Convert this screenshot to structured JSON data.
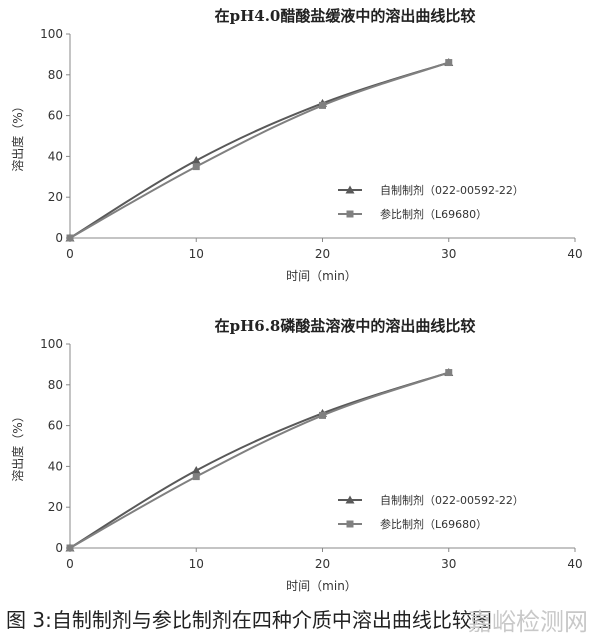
{
  "chart_data": [
    {
      "type": "line",
      "title": "在pH4.0醋酸盐缓液中的溶出曲线比较",
      "xlabel": "时间（min）",
      "ylabel": "溶出度（%）",
      "xlim": [
        0,
        40
      ],
      "ylim": [
        0,
        100
      ],
      "x_ticks": [
        "0",
        "10",
        "20",
        "30",
        "40"
      ],
      "y_ticks": [
        "0",
        "20",
        "40",
        "60",
        "80",
        "100"
      ],
      "legend_position": "lower-right",
      "series": [
        {
          "name": "自制制剂（022-00592-22）",
          "marker": "triangle",
          "color": "#595959",
          "x": [
            0,
            10,
            20,
            30
          ],
          "y": [
            0,
            38,
            66,
            86
          ]
        },
        {
          "name": "参比制剂（L69680）",
          "marker": "square",
          "color": "#808080",
          "x": [
            0,
            10,
            20,
            30
          ],
          "y": [
            0,
            35,
            65,
            86
          ]
        }
      ]
    },
    {
      "type": "line",
      "title": "在pH6.8磷酸盐溶液中的溶出曲线比较",
      "xlabel": "时间（min）",
      "ylabel": "溶出度（%）",
      "xlim": [
        0,
        40
      ],
      "ylim": [
        0,
        100
      ],
      "x_ticks": [
        "0",
        "10",
        "20",
        "30",
        "40"
      ],
      "y_ticks": [
        "0",
        "20",
        "40",
        "60",
        "80",
        "100"
      ],
      "legend_position": "lower-right",
      "series": [
        {
          "name": "自制制剂（022-00592-22）",
          "marker": "triangle",
          "color": "#595959",
          "x": [
            0,
            10,
            20,
            30
          ],
          "y": [
            0,
            38,
            66,
            86
          ]
        },
        {
          "name": "参比制剂（L69680）",
          "marker": "square",
          "color": "#808080",
          "x": [
            0,
            10,
            20,
            30
          ],
          "y": [
            0,
            35,
            65,
            86
          ]
        }
      ]
    }
  ],
  "caption": "图 3:自制制剂与参比制剂在四种介质中溶出曲线比较图",
  "watermark": "嘉峪检测网"
}
